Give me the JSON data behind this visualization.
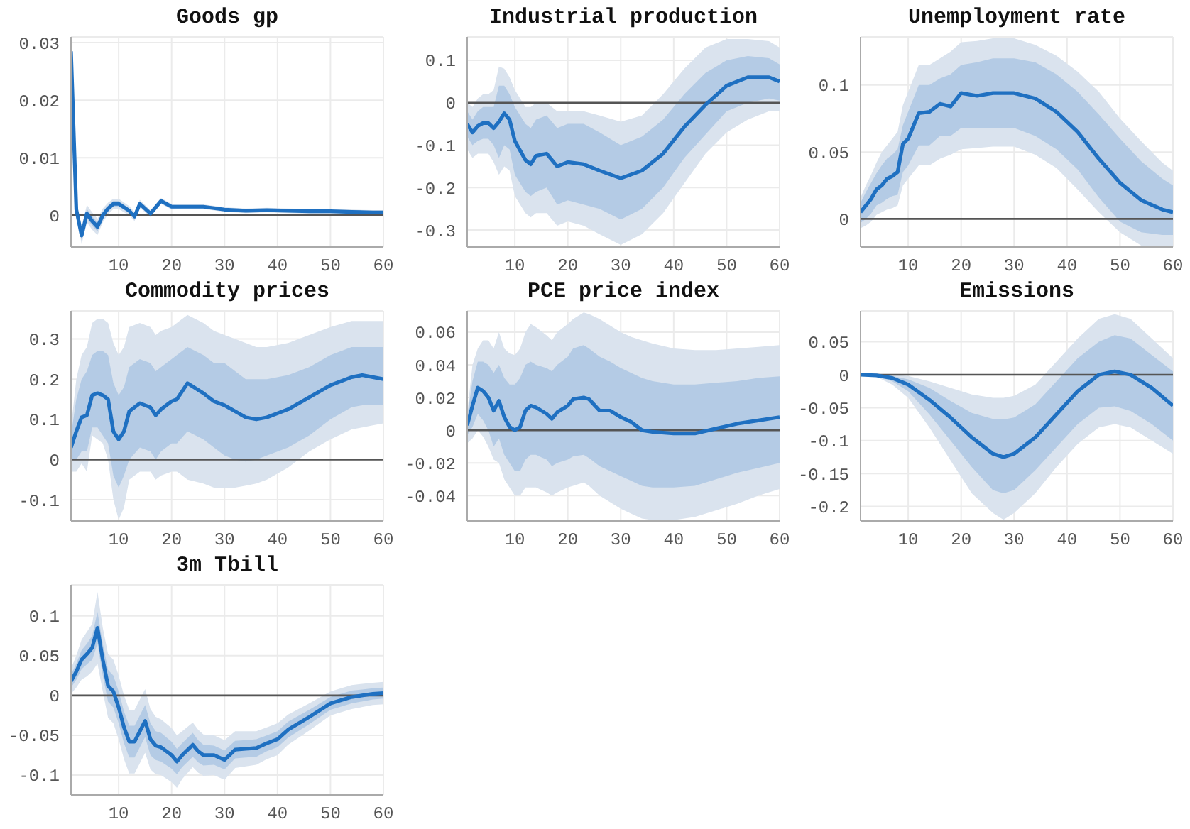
{
  "chart_data": [
    {
      "type": "line",
      "title": "Goods gp",
      "x": [
        1,
        2,
        3,
        4,
        5,
        6,
        7,
        8,
        9,
        10,
        12,
        13,
        14,
        16,
        18,
        20,
        23,
        26,
        30,
        34,
        38,
        42,
        46,
        50,
        54,
        58,
        60
      ],
      "xlim": [
        1,
        60
      ],
      "xticks": [
        10,
        20,
        30,
        40,
        50,
        60
      ],
      "ylim": [
        -0.0055,
        0.031
      ],
      "yticks": [
        0,
        0.01,
        0.02,
        0.03
      ],
      "grid": true,
      "ref_lines": [
        {
          "axis": "y",
          "value": 0,
          "color": "#555555"
        }
      ],
      "series": [
        {
          "color": "#dae3ee",
          "values": [
            null,
            null,
            null,
            null,
            null,
            null,
            null,
            null,
            null,
            null,
            null,
            null,
            null,
            null,
            null,
            null,
            null,
            null,
            null,
            null,
            null,
            null,
            null,
            null,
            null,
            null,
            null
          ],
          "lower": [
            0.0285,
            0,
            -0.005,
            -0.0012,
            -0.0025,
            -0.0034,
            -0.0012,
            0.0002,
            0.0011,
            0.0011,
            0,
            -0.001,
            0.0013,
            -0.0003,
            0.002,
            0.001,
            0.0011,
            0.0011,
            0.0006,
            0.0004,
            0.0005,
            0.0004,
            0.0003,
            0.0003,
            0.0002,
            0.0001,
            0.0001
          ],
          "upper": [
            0.0285,
            0.002,
            -0.002,
            0.0018,
            0.0005,
            -0.0006,
            0.0012,
            0.0022,
            0.0029,
            0.0029,
            0.0016,
            0.0006,
            0.0027,
            0.0009,
            0.003,
            0.002,
            0.0019,
            0.0019,
            0.0014,
            0.0012,
            0.0013,
            0.0012,
            0.0011,
            0.0011,
            0.001,
            0.0009,
            0.0009
          ]
        },
        {
          "color": "#1f70c1",
          "values": [
            0.0285,
            0.001,
            -0.0035,
            0.0003,
            -0.001,
            -0.002,
            0,
            0.0012,
            0.002,
            0.002,
            0.0008,
            -0.0002,
            0.002,
            0.0003,
            0.0025,
            0.0015,
            0.0015,
            0.0015,
            0.001,
            0.0008,
            0.0009,
            0.0008,
            0.0007,
            0.0007,
            0.0006,
            0.0005,
            0.0005
          ],
          "lower": [
            0.0285,
            0.0005,
            -0.0043,
            -0.0005,
            -0.0018,
            -0.0028,
            -0.0006,
            0.0007,
            0.0015,
            0.0015,
            0.0004,
            -0.0006,
            0.0016,
            0,
            0.0022,
            0.0012,
            0.0013,
            0.0013,
            0.0008,
            0.0006,
            0.0007,
            0.0006,
            0.0005,
            0.0005,
            0.0004,
            0.0003,
            0.0003
          ],
          "upper": [
            0.0285,
            0.0015,
            -0.0027,
            0.0011,
            -0.0002,
            -0.0012,
            0.0006,
            0.0017,
            0.0025,
            0.0025,
            0.0012,
            0.0002,
            0.0024,
            0.0006,
            0.0028,
            0.0018,
            0.0017,
            0.0017,
            0.0012,
            0.001,
            0.0011,
            0.001,
            0.0009,
            0.0009,
            0.0008,
            0.0007,
            0.0007
          ]
        }
      ]
    },
    {
      "type": "line",
      "title": "Industrial production",
      "x": [
        1,
        2,
        3,
        4,
        5,
        6,
        7,
        8,
        9,
        10,
        12,
        13,
        14,
        16,
        18,
        20,
        23,
        26,
        30,
        34,
        38,
        42,
        46,
        50,
        54,
        58,
        60
      ],
      "xlim": [
        1,
        60
      ],
      "xticks": [
        10,
        20,
        30,
        40,
        50,
        60
      ],
      "ylim": [
        -0.34,
        0.155
      ],
      "yticks": [
        -0.3,
        -0.2,
        -0.1,
        0,
        0.1
      ],
      "grid": true,
      "ref_lines": [
        {
          "axis": "y",
          "value": 0,
          "color": "#555555"
        }
      ],
      "series": [
        {
          "color": "#dae3ee",
          "values": [
            null,
            null,
            null,
            null,
            null,
            null,
            null,
            null,
            null,
            null,
            null,
            null,
            null,
            null,
            null,
            null,
            null,
            null,
            null,
            null,
            null,
            null,
            null,
            null,
            null,
            null,
            null
          ],
          "lower": [
            -0.11,
            -0.13,
            -0.12,
            -0.12,
            -0.12,
            -0.14,
            -0.17,
            -0.15,
            -0.16,
            -0.22,
            -0.26,
            -0.27,
            -0.26,
            -0.26,
            -0.29,
            -0.28,
            -0.29,
            -0.31,
            -0.335,
            -0.31,
            -0.26,
            -0.19,
            -0.12,
            -0.07,
            -0.04,
            -0.02,
            -0.02
          ],
          "upper": [
            0,
            -0.01,
            0.01,
            0.02,
            0.02,
            0.03,
            0.085,
            0.08,
            0.06,
            0.03,
            -0.01,
            -0.01,
            0,
            0,
            -0.02,
            -0.02,
            -0.02,
            -0.03,
            -0.045,
            -0.03,
            0.02,
            0.08,
            0.13,
            0.15,
            0.15,
            0.145,
            0.13
          ]
        },
        {
          "color": "#1f70c1",
          "values": [
            -0.05,
            -0.07,
            -0.055,
            -0.048,
            -0.048,
            -0.06,
            -0.045,
            -0.025,
            -0.04,
            -0.09,
            -0.135,
            -0.145,
            -0.125,
            -0.12,
            -0.15,
            -0.14,
            -0.145,
            -0.16,
            -0.178,
            -0.16,
            -0.12,
            -0.057,
            -0.005,
            0.04,
            0.06,
            0.06,
            0.05
          ],
          "lower": [
            -0.08,
            -0.1,
            -0.09,
            -0.085,
            -0.085,
            -0.1,
            -0.13,
            -0.1,
            -0.11,
            -0.17,
            -0.21,
            -0.22,
            -0.21,
            -0.2,
            -0.24,
            -0.23,
            -0.24,
            -0.25,
            -0.275,
            -0.25,
            -0.2,
            -0.13,
            -0.075,
            -0.02,
            0,
            0.01,
            0.005
          ],
          "upper": [
            -0.02,
            -0.04,
            -0.02,
            -0.01,
            -0.01,
            -0.01,
            0.04,
            0.04,
            0.02,
            -0.01,
            -0.05,
            -0.06,
            -0.04,
            -0.03,
            -0.06,
            -0.05,
            -0.05,
            -0.07,
            -0.1,
            -0.08,
            -0.04,
            0.02,
            0.07,
            0.1,
            0.11,
            0.105,
            0.09
          ]
        }
      ]
    },
    {
      "type": "line",
      "title": "Unemployment rate",
      "x": [
        1,
        2,
        3,
        4,
        5,
        6,
        7,
        8,
        9,
        10,
        12,
        14,
        16,
        18,
        20,
        23,
        26,
        30,
        34,
        38,
        42,
        46,
        50,
        54,
        58,
        60
      ],
      "xlim": [
        1,
        60
      ],
      "xticks": [
        10,
        20,
        30,
        40,
        50,
        60
      ],
      "ylim": [
        -0.021,
        0.136
      ],
      "yticks": [
        0,
        0.05,
        0.1
      ],
      "grid": true,
      "ref_lines": [
        {
          "axis": "y",
          "value": 0,
          "color": "#555555"
        }
      ],
      "series": [
        {
          "color": "#dae3ee",
          "values": [
            null,
            null,
            null,
            null,
            null,
            null,
            null,
            null,
            null,
            null,
            null,
            null,
            null,
            null,
            null,
            null,
            null,
            null,
            null,
            null,
            null,
            null,
            null,
            null,
            null,
            null
          ],
          "lower": [
            -0.007,
            -0.005,
            -0.002,
            0.003,
            0.005,
            0.007,
            0.008,
            0.01,
            0.025,
            0.03,
            0.04,
            0.04,
            0.045,
            0.048,
            0.052,
            0.053,
            0.054,
            0.054,
            0.048,
            0.038,
            0.022,
            0.005,
            -0.01,
            -0.02,
            -0.021,
            -0.021
          ],
          "upper": [
            0.016,
            0.025,
            0.033,
            0.042,
            0.05,
            0.055,
            0.06,
            0.065,
            0.085,
            0.095,
            0.115,
            0.115,
            0.12,
            0.125,
            0.132,
            0.133,
            0.135,
            0.135,
            0.13,
            0.122,
            0.11,
            0.095,
            0.075,
            0.058,
            0.042,
            0.036
          ]
        },
        {
          "color": "#1f70c1",
          "values": [
            0.005,
            0.01,
            0.015,
            0.022,
            0.025,
            0.03,
            0.032,
            0.035,
            0.056,
            0.06,
            0.079,
            0.08,
            0.086,
            0.084,
            0.094,
            0.092,
            0.094,
            0.094,
            0.09,
            0.08,
            0.065,
            0.045,
            0.027,
            0.014,
            0.007,
            0.005
          ],
          "lower": [
            -0.003,
            0,
            0.004,
            0.01,
            0.012,
            0.015,
            0.017,
            0.018,
            0.035,
            0.04,
            0.055,
            0.055,
            0.062,
            0.062,
            0.068,
            0.068,
            0.068,
            0.068,
            0.062,
            0.052,
            0.037,
            0.016,
            -0.002,
            -0.01,
            -0.012,
            -0.012
          ],
          "upper": [
            0.012,
            0.02,
            0.027,
            0.034,
            0.04,
            0.045,
            0.048,
            0.052,
            0.07,
            0.08,
            0.1,
            0.1,
            0.105,
            0.108,
            0.115,
            0.117,
            0.12,
            0.12,
            0.117,
            0.108,
            0.095,
            0.078,
            0.06,
            0.043,
            0.03,
            0.025
          ]
        }
      ]
    },
    {
      "type": "line",
      "title": "Commodity prices",
      "x": [
        1,
        2,
        3,
        4,
        5,
        6,
        7,
        8,
        9,
        10,
        11,
        12,
        14,
        16,
        17,
        18,
        20,
        21,
        23,
        26,
        28,
        30,
        32,
        34,
        36,
        38,
        42,
        46,
        50,
        54,
        56,
        58,
        60
      ],
      "xlim": [
        1,
        60
      ],
      "xticks": [
        10,
        20,
        30,
        40,
        50,
        60
      ],
      "ylim": [
        -0.153,
        0.37
      ],
      "yticks": [
        -0.1,
        0,
        0.1,
        0.2,
        0.3
      ],
      "grid": true,
      "ref_lines": [
        {
          "axis": "y",
          "value": 0,
          "color": "#555555"
        }
      ],
      "series": [
        {
          "color": "#dae3ee",
          "values": [
            null,
            null,
            null,
            null,
            null,
            null,
            null,
            null,
            null,
            null,
            null,
            null,
            null,
            null,
            null,
            null,
            null,
            null,
            null,
            null,
            null,
            null,
            null,
            null,
            null,
            null,
            null,
            null,
            null,
            null,
            null,
            null,
            null
          ],
          "lower": [
            -0.03,
            -0.03,
            -0.01,
            -0.03,
            0.06,
            0.05,
            0.04,
            0,
            -0.1,
            -0.15,
            -0.12,
            -0.05,
            -0.03,
            -0.03,
            -0.05,
            -0.04,
            -0.03,
            -0.03,
            -0.05,
            -0.06,
            -0.07,
            -0.07,
            -0.07,
            -0.065,
            -0.06,
            -0.05,
            -0.02,
            0.02,
            0.05,
            0.075,
            0.08,
            0.085,
            0.09
          ],
          "upper": [
            0.08,
            0.2,
            0.26,
            0.28,
            0.34,
            0.35,
            0.35,
            0.34,
            0.29,
            0.26,
            0.28,
            0.33,
            0.34,
            0.33,
            0.31,
            0.32,
            0.33,
            0.34,
            0.36,
            0.34,
            0.32,
            0.31,
            0.3,
            0.29,
            0.28,
            0.28,
            0.29,
            0.31,
            0.33,
            0.345,
            0.345,
            0.345,
            0.345
          ]
        },
        {
          "color": "#1f70c1",
          "values": [
            0.03,
            0.07,
            0.105,
            0.11,
            0.16,
            0.165,
            0.16,
            0.15,
            0.07,
            0.05,
            0.07,
            0.12,
            0.14,
            0.13,
            0.11,
            0.125,
            0.145,
            0.15,
            0.19,
            0.165,
            0.145,
            0.135,
            0.12,
            0.105,
            0.1,
            0.105,
            0.125,
            0.155,
            0.185,
            0.205,
            0.21,
            0.205,
            0.2
          ],
          "lower": [
            0,
            0,
            0.02,
            0.02,
            0.08,
            0.08,
            0.06,
            0.04,
            -0.04,
            -0.07,
            -0.04,
            0,
            0.03,
            0.02,
            0,
            0.02,
            0.04,
            0.04,
            0.07,
            0.05,
            0.03,
            0.01,
            0,
            -0.005,
            0,
            0.01,
            0.03,
            0.06,
            0.1,
            0.13,
            0.135,
            0.135,
            0.135
          ],
          "upper": [
            0.06,
            0.15,
            0.2,
            0.22,
            0.26,
            0.27,
            0.27,
            0.26,
            0.19,
            0.16,
            0.18,
            0.23,
            0.25,
            0.24,
            0.22,
            0.23,
            0.25,
            0.26,
            0.28,
            0.26,
            0.24,
            0.24,
            0.22,
            0.2,
            0.2,
            0.2,
            0.21,
            0.23,
            0.26,
            0.28,
            0.28,
            0.28,
            0.28
          ]
        }
      ]
    },
    {
      "type": "line",
      "title": "PCE price index",
      "x": [
        1,
        2,
        3,
        4,
        5,
        6,
        7,
        8,
        9,
        10,
        11,
        12,
        13,
        14,
        16,
        17,
        18,
        20,
        21,
        23,
        24,
        26,
        28,
        30,
        32,
        34,
        36,
        40,
        44,
        48,
        52,
        56,
        60
      ],
      "xlim": [
        1,
        60
      ],
      "xticks": [
        10,
        20,
        30,
        40,
        50,
        60
      ],
      "ylim": [
        -0.0555,
        0.073
      ],
      "yticks": [
        -0.04,
        -0.02,
        0,
        0.02,
        0.04,
        0.06
      ],
      "grid": true,
      "ref_lines": [
        {
          "axis": "y",
          "value": 0,
          "color": "#555555"
        }
      ],
      "series": [
        {
          "color": "#dae3ee",
          "values": [
            null,
            null,
            null,
            null,
            null,
            null,
            null,
            null,
            null,
            null,
            null,
            null,
            null,
            null,
            null,
            null,
            null,
            null,
            null,
            null,
            null,
            null,
            null,
            null,
            null,
            null,
            null,
            null,
            null,
            null,
            null,
            null,
            null
          ],
          "lower": [
            -0.008,
            -0.005,
            0,
            -0.004,
            -0.01,
            -0.018,
            -0.02,
            -0.03,
            -0.035,
            -0.04,
            -0.04,
            -0.035,
            -0.035,
            -0.035,
            -0.038,
            -0.04,
            -0.038,
            -0.035,
            -0.034,
            -0.032,
            -0.034,
            -0.04,
            -0.044,
            -0.048,
            -0.051,
            -0.054,
            -0.055,
            -0.055,
            -0.053,
            -0.049,
            -0.045,
            -0.04,
            -0.036
          ],
          "upper": [
            0.01,
            0.04,
            0.05,
            0.055,
            0.055,
            0.05,
            0.06,
            0.05,
            0.047,
            0.046,
            0.05,
            0.06,
            0.065,
            0.063,
            0.058,
            0.055,
            0.06,
            0.065,
            0.068,
            0.072,
            0.071,
            0.068,
            0.064,
            0.06,
            0.057,
            0.055,
            0.053,
            0.05,
            0.049,
            0.049,
            0.05,
            0.051,
            0.052
          ]
        },
        {
          "color": "#1f70c1",
          "values": [
            0.003,
            0.015,
            0.026,
            0.024,
            0.02,
            0.012,
            0.018,
            0.008,
            0.002,
            0,
            0.002,
            0.012,
            0.015,
            0.014,
            0.01,
            0.007,
            0.011,
            0.015,
            0.019,
            0.02,
            0.019,
            0.012,
            0.012,
            0.008,
            0.005,
            0,
            -0.001,
            -0.002,
            -0.002,
            0.001,
            0.004,
            0.006,
            0.008
          ],
          "lower": [
            -0.003,
            0.002,
            0.01,
            0.006,
            0,
            -0.01,
            -0.005,
            -0.015,
            -0.02,
            -0.025,
            -0.025,
            -0.018,
            -0.015,
            -0.015,
            -0.018,
            -0.022,
            -0.02,
            -0.018,
            -0.016,
            -0.015,
            -0.017,
            -0.022,
            -0.025,
            -0.028,
            -0.031,
            -0.034,
            -0.035,
            -0.035,
            -0.034,
            -0.03,
            -0.026,
            -0.023,
            -0.02
          ],
          "upper": [
            0.008,
            0.03,
            0.042,
            0.042,
            0.04,
            0.035,
            0.04,
            0.032,
            0.028,
            0.028,
            0.032,
            0.04,
            0.042,
            0.04,
            0.038,
            0.036,
            0.04,
            0.045,
            0.05,
            0.052,
            0.05,
            0.045,
            0.042,
            0.038,
            0.035,
            0.032,
            0.03,
            0.028,
            0.028,
            0.029,
            0.03,
            0.032,
            0.033
          ]
        }
      ]
    },
    {
      "type": "line",
      "title": "Emissions",
      "x": [
        1,
        4,
        7,
        10,
        14,
        18,
        22,
        26,
        28,
        30,
        34,
        38,
        42,
        46,
        49,
        52,
        56,
        60
      ],
      "xlim": [
        1,
        60
      ],
      "xticks": [
        10,
        20,
        30,
        40,
        50,
        60
      ],
      "ylim": [
        -0.222,
        0.097
      ],
      "yticks": [
        -0.2,
        -0.15,
        -0.1,
        -0.05,
        0,
        0.05
      ],
      "grid": true,
      "ref_lines": [
        {
          "axis": "y",
          "value": 0,
          "color": "#555555"
        }
      ],
      "series": [
        {
          "color": "#dae3ee",
          "values": [
            null,
            null,
            null,
            null,
            null,
            null,
            null,
            null,
            null,
            null,
            null,
            null,
            null,
            null,
            null,
            null,
            null,
            null
          ],
          "lower": [
            0,
            -0.003,
            -0.015,
            -0.035,
            -0.08,
            -0.13,
            -0.18,
            -0.21,
            -0.22,
            -0.21,
            -0.18,
            -0.14,
            -0.105,
            -0.08,
            -0.075,
            -0.08,
            -0.1,
            -0.12
          ],
          "upper": [
            0,
            0.001,
            0,
            -0.002,
            -0.01,
            -0.02,
            -0.03,
            -0.035,
            -0.035,
            -0.032,
            -0.015,
            0.02,
            0.055,
            0.085,
            0.092,
            0.085,
            0.055,
            0.025
          ]
        },
        {
          "color": "#1f70c1",
          "values": [
            0,
            -0.001,
            -0.005,
            -0.015,
            -0.038,
            -0.065,
            -0.095,
            -0.12,
            -0.125,
            -0.12,
            -0.095,
            -0.06,
            -0.025,
            0,
            0.005,
            0,
            -0.02,
            -0.047
          ],
          "lower": [
            0,
            -0.002,
            -0.01,
            -0.025,
            -0.06,
            -0.1,
            -0.14,
            -0.175,
            -0.18,
            -0.175,
            -0.145,
            -0.11,
            -0.075,
            -0.05,
            -0.048,
            -0.055,
            -0.075,
            -0.1
          ],
          "upper": [
            0,
            0,
            -0.002,
            -0.007,
            -0.02,
            -0.04,
            -0.058,
            -0.067,
            -0.068,
            -0.065,
            -0.045,
            -0.01,
            0.025,
            0.05,
            0.06,
            0.055,
            0.03,
            0.005
          ]
        }
      ]
    },
    {
      "type": "line",
      "title": "3m Tbill",
      "x": [
        1,
        2,
        3,
        4,
        5,
        6,
        7,
        8,
        9,
        10,
        11,
        12,
        13,
        14,
        15,
        16,
        17,
        18,
        20,
        21,
        22,
        24,
        25,
        26,
        28,
        30,
        32,
        34,
        36,
        38,
        40,
        42,
        46,
        50,
        54,
        58,
        60
      ],
      "xlim": [
        1,
        60
      ],
      "xticks": [
        10,
        20,
        30,
        40,
        50,
        60
      ],
      "ylim": [
        -0.125,
        0.139
      ],
      "yticks": [
        -0.1,
        -0.05,
        0,
        0.05,
        0.1
      ],
      "grid": true,
      "ref_lines": [
        {
          "axis": "y",
          "value": 0,
          "color": "#555555"
        }
      ],
      "series": [
        {
          "color": "#dae3ee",
          "values": [
            null,
            null,
            null,
            null,
            null,
            null,
            null,
            null,
            null,
            null,
            null,
            null,
            null,
            null,
            null,
            null,
            null,
            null,
            null,
            null,
            null,
            null,
            null,
            null,
            null,
            null,
            null,
            null,
            null,
            null,
            null,
            null,
            null,
            null,
            null,
            null,
            null
          ],
          "lower": [
            0.002,
            0.01,
            0.02,
            0.024,
            0.03,
            0.04,
            0.005,
            -0.028,
            -0.035,
            -0.055,
            -0.08,
            -0.098,
            -0.098,
            -0.085,
            -0.072,
            -0.093,
            -0.099,
            -0.1,
            -0.109,
            -0.116,
            -0.105,
            -0.09,
            -0.097,
            -0.101,
            -0.1,
            -0.106,
            -0.091,
            -0.089,
            -0.087,
            -0.08,
            -0.075,
            -0.062,
            -0.044,
            -0.025,
            -0.017,
            -0.012,
            -0.011
          ],
          "upper": [
            0.034,
            0.05,
            0.07,
            0.08,
            0.09,
            0.13,
            0.085,
            0.052,
            0.045,
            0.025,
            0,
            -0.018,
            -0.018,
            -0.005,
            0.008,
            -0.017,
            -0.027,
            -0.03,
            -0.041,
            -0.05,
            -0.045,
            -0.034,
            -0.043,
            -0.049,
            -0.05,
            -0.056,
            -0.045,
            -0.045,
            -0.045,
            -0.04,
            -0.035,
            -0.024,
            -0.01,
            0.005,
            0.013,
            0.016,
            0.017
          ]
        },
        {
          "color": "#1f70c1",
          "values": [
            0.018,
            0.03,
            0.045,
            0.052,
            0.06,
            0.085,
            0.045,
            0.012,
            0.005,
            -0.015,
            -0.04,
            -0.058,
            -0.058,
            -0.045,
            -0.032,
            -0.055,
            -0.063,
            -0.065,
            -0.075,
            -0.083,
            -0.075,
            -0.062,
            -0.07,
            -0.075,
            -0.075,
            -0.081,
            -0.068,
            -0.067,
            -0.066,
            -0.06,
            -0.055,
            -0.043,
            -0.027,
            -0.01,
            -0.002,
            0.002,
            0.003
          ],
          "lower": [
            0.01,
            0.02,
            0.033,
            0.039,
            0.045,
            0.065,
            0.025,
            -0.008,
            -0.015,
            -0.035,
            -0.06,
            -0.078,
            -0.078,
            -0.065,
            -0.052,
            -0.075,
            -0.081,
            -0.083,
            -0.092,
            -0.099,
            -0.09,
            -0.077,
            -0.084,
            -0.088,
            -0.087,
            -0.093,
            -0.079,
            -0.078,
            -0.077,
            -0.07,
            -0.065,
            -0.053,
            -0.036,
            -0.018,
            -0.01,
            -0.005,
            -0.004
          ],
          "upper": [
            0.026,
            0.04,
            0.057,
            0.065,
            0.075,
            0.105,
            0.065,
            0.032,
            0.025,
            0.005,
            -0.02,
            -0.038,
            -0.038,
            -0.025,
            -0.012,
            -0.035,
            -0.045,
            -0.047,
            -0.058,
            -0.067,
            -0.06,
            -0.047,
            -0.056,
            -0.062,
            -0.063,
            -0.069,
            -0.057,
            -0.056,
            -0.055,
            -0.05,
            -0.045,
            -0.033,
            -0.018,
            -0.002,
            0.006,
            0.009,
            0.01
          ]
        }
      ]
    }
  ]
}
